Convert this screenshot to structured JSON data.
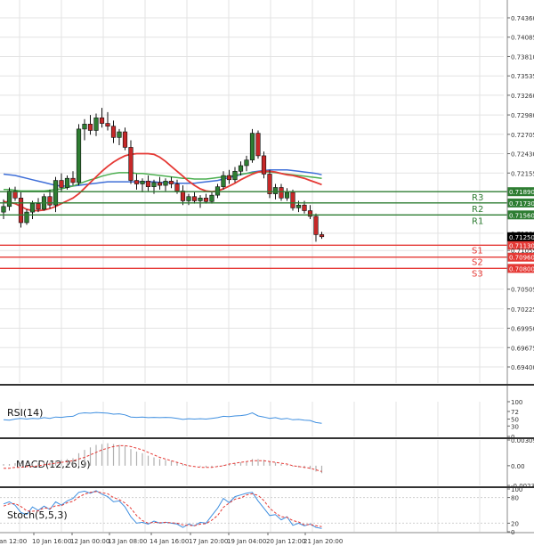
{
  "chart_data": [
    {
      "panel": "price",
      "type": "candlestick",
      "ylim": [
        0.694,
        0.7436
      ],
      "y_ticks": [
        "0.74360",
        "0.74085",
        "0.73810",
        "0.73535",
        "0.73260",
        "0.72980",
        "0.72705",
        "0.72430",
        "0.72155",
        "0.71890",
        "0.71730",
        "0.71560",
        "0.71300",
        "0.71250",
        "0.71130",
        "0.71055",
        "0.70960",
        "0.70800",
        "0.70505",
        "0.70225",
        "0.69950",
        "0.69675",
        "0.69400"
      ],
      "x_ticks": [
        "Jan 12:00",
        "10 Jan 16:00",
        "12 Jan 00:00",
        "13 Jan 08:00",
        "14 Jan 16:00",
        "17 Jan 20:00",
        "19 Jan 04:00",
        "20 Jan 12:00",
        "21 Jan 20:00"
      ],
      "candles": [
        {
          "o": 0.716,
          "h": 0.7178,
          "l": 0.715,
          "c": 0.7168
        },
        {
          "o": 0.7168,
          "h": 0.7195,
          "l": 0.7162,
          "c": 0.719
        },
        {
          "o": 0.719,
          "h": 0.7196,
          "l": 0.7176,
          "c": 0.718
        },
        {
          "o": 0.718,
          "h": 0.7188,
          "l": 0.7138,
          "c": 0.7145
        },
        {
          "o": 0.7145,
          "h": 0.7164,
          "l": 0.7142,
          "c": 0.716
        },
        {
          "o": 0.716,
          "h": 0.7176,
          "l": 0.715,
          "c": 0.7172
        },
        {
          "o": 0.7172,
          "h": 0.718,
          "l": 0.716,
          "c": 0.7164
        },
        {
          "o": 0.7164,
          "h": 0.7186,
          "l": 0.7162,
          "c": 0.7182
        },
        {
          "o": 0.7182,
          "h": 0.7192,
          "l": 0.7165,
          "c": 0.717
        },
        {
          "o": 0.717,
          "h": 0.721,
          "l": 0.716,
          "c": 0.7205
        },
        {
          "o": 0.7205,
          "h": 0.7215,
          "l": 0.7188,
          "c": 0.7195
        },
        {
          "o": 0.7195,
          "h": 0.7212,
          "l": 0.7192,
          "c": 0.7208
        },
        {
          "o": 0.7208,
          "h": 0.7218,
          "l": 0.7198,
          "c": 0.7202
        },
        {
          "o": 0.7202,
          "h": 0.7285,
          "l": 0.7198,
          "c": 0.7278
        },
        {
          "o": 0.7278,
          "h": 0.7292,
          "l": 0.7262,
          "c": 0.7285
        },
        {
          "o": 0.7285,
          "h": 0.7298,
          "l": 0.727,
          "c": 0.7276
        },
        {
          "o": 0.7276,
          "h": 0.73,
          "l": 0.7268,
          "c": 0.7294
        },
        {
          "o": 0.7294,
          "h": 0.7308,
          "l": 0.728,
          "c": 0.7286
        },
        {
          "o": 0.7286,
          "h": 0.7302,
          "l": 0.7276,
          "c": 0.7282
        },
        {
          "o": 0.7282,
          "h": 0.729,
          "l": 0.7258,
          "c": 0.7266
        },
        {
          "o": 0.7266,
          "h": 0.7278,
          "l": 0.7255,
          "c": 0.7274
        },
        {
          "o": 0.7274,
          "h": 0.728,
          "l": 0.7248,
          "c": 0.7252
        },
        {
          "o": 0.7252,
          "h": 0.7262,
          "l": 0.72,
          "c": 0.7205
        },
        {
          "o": 0.7205,
          "h": 0.7214,
          "l": 0.7192,
          "c": 0.72
        },
        {
          "o": 0.72,
          "h": 0.7208,
          "l": 0.7188,
          "c": 0.7204
        },
        {
          "o": 0.7204,
          "h": 0.7212,
          "l": 0.719,
          "c": 0.7196
        },
        {
          "o": 0.7196,
          "h": 0.7206,
          "l": 0.7186,
          "c": 0.7202
        },
        {
          "o": 0.7202,
          "h": 0.721,
          "l": 0.7192,
          "c": 0.7198
        },
        {
          "o": 0.7198,
          "h": 0.7208,
          "l": 0.719,
          "c": 0.7204
        },
        {
          "o": 0.7204,
          "h": 0.721,
          "l": 0.7194,
          "c": 0.72
        },
        {
          "o": 0.72,
          "h": 0.7206,
          "l": 0.7186,
          "c": 0.719
        },
        {
          "o": 0.719,
          "h": 0.7198,
          "l": 0.717,
          "c": 0.7176
        },
        {
          "o": 0.7176,
          "h": 0.7186,
          "l": 0.717,
          "c": 0.7182
        },
        {
          "o": 0.7182,
          "h": 0.7188,
          "l": 0.7172,
          "c": 0.7176
        },
        {
          "o": 0.7176,
          "h": 0.7184,
          "l": 0.7166,
          "c": 0.718
        },
        {
          "o": 0.718,
          "h": 0.7186,
          "l": 0.7172,
          "c": 0.7175
        },
        {
          "o": 0.7175,
          "h": 0.7188,
          "l": 0.7172,
          "c": 0.7184
        },
        {
          "o": 0.7184,
          "h": 0.72,
          "l": 0.718,
          "c": 0.7196
        },
        {
          "o": 0.7196,
          "h": 0.7218,
          "l": 0.7192,
          "c": 0.7212
        },
        {
          "o": 0.7212,
          "h": 0.722,
          "l": 0.72,
          "c": 0.7206
        },
        {
          "o": 0.7206,
          "h": 0.7224,
          "l": 0.7202,
          "c": 0.7218
        },
        {
          "o": 0.7218,
          "h": 0.7232,
          "l": 0.7212,
          "c": 0.7226
        },
        {
          "o": 0.7226,
          "h": 0.724,
          "l": 0.7218,
          "c": 0.7234
        },
        {
          "o": 0.7234,
          "h": 0.7278,
          "l": 0.723,
          "c": 0.7272
        },
        {
          "o": 0.7272,
          "h": 0.7276,
          "l": 0.7236,
          "c": 0.724
        },
        {
          "o": 0.724,
          "h": 0.7246,
          "l": 0.7208,
          "c": 0.7214
        },
        {
          "o": 0.7214,
          "h": 0.722,
          "l": 0.718,
          "c": 0.7186
        },
        {
          "o": 0.7186,
          "h": 0.72,
          "l": 0.7178,
          "c": 0.7195
        },
        {
          "o": 0.7195,
          "h": 0.72,
          "l": 0.7176,
          "c": 0.718
        },
        {
          "o": 0.718,
          "h": 0.7194,
          "l": 0.7176,
          "c": 0.7188
        },
        {
          "o": 0.7188,
          "h": 0.7192,
          "l": 0.7162,
          "c": 0.7166
        },
        {
          "o": 0.7166,
          "h": 0.7176,
          "l": 0.716,
          "c": 0.717
        },
        {
          "o": 0.717,
          "h": 0.7176,
          "l": 0.7158,
          "c": 0.7162
        },
        {
          "o": 0.7162,
          "h": 0.717,
          "l": 0.715,
          "c": 0.7154
        },
        {
          "o": 0.7154,
          "h": 0.7158,
          "l": 0.7118,
          "c": 0.7128
        },
        {
          "o": 0.7128,
          "h": 0.7132,
          "l": 0.7122,
          "c": 0.7125
        }
      ],
      "ma_red": [
        0.7175,
        0.7174,
        0.7172,
        0.7168,
        0.7164,
        0.7162,
        0.7162,
        0.7163,
        0.7165,
        0.7168,
        0.7172,
        0.7176,
        0.718,
        0.7186,
        0.7194,
        0.7202,
        0.721,
        0.7218,
        0.7225,
        0.7231,
        0.7236,
        0.724,
        0.7242,
        0.7243,
        0.7243,
        0.7243,
        0.7242,
        0.7238,
        0.7232,
        0.7225,
        0.7218,
        0.7211,
        0.7204,
        0.7198,
        0.7193,
        0.719,
        0.7189,
        0.719,
        0.7193,
        0.7197,
        0.7201,
        0.7206,
        0.721,
        0.7214,
        0.7217,
        0.7218,
        0.7218,
        0.7217,
        0.7215,
        0.7213,
        0.7212,
        0.721,
        0.7208,
        0.7205,
        0.7202,
        0.7199
      ],
      "ma_green": [
        0.7192,
        0.7192,
        0.7191,
        0.719,
        0.719,
        0.719,
        0.719,
        0.719,
        0.7191,
        0.7192,
        0.7193,
        0.7195,
        0.7197,
        0.72,
        0.7203,
        0.7206,
        0.7208,
        0.7211,
        0.7213,
        0.7215,
        0.7216,
        0.7216,
        0.7216,
        0.7215,
        0.7215,
        0.7214,
        0.7213,
        0.7212,
        0.7211,
        0.721,
        0.7209,
        0.7208,
        0.7208,
        0.7207,
        0.7207,
        0.7207,
        0.7208,
        0.7209,
        0.721,
        0.7211,
        0.7212,
        0.7214,
        0.7215,
        0.7216,
        0.7217,
        0.7217,
        0.7217,
        0.7216,
        0.7215,
        0.7214,
        0.7213,
        0.7212,
        0.7211,
        0.721,
        0.7209,
        0.7208
      ],
      "ma_blue": [
        0.7214,
        0.7213,
        0.7212,
        0.721,
        0.7208,
        0.7206,
        0.7204,
        0.7202,
        0.72,
        0.7198,
        0.7197,
        0.7197,
        0.7197,
        0.7198,
        0.7199,
        0.72,
        0.7201,
        0.7202,
        0.7203,
        0.7203,
        0.7203,
        0.7203,
        0.7203,
        0.7203,
        0.7203,
        0.7203,
        0.7203,
        0.7202,
        0.7202,
        0.7202,
        0.7201,
        0.7201,
        0.7201,
        0.7201,
        0.7202,
        0.7203,
        0.7204,
        0.7205,
        0.7207,
        0.7209,
        0.7211,
        0.7213,
        0.7215,
        0.7217,
        0.7218,
        0.7219,
        0.722,
        0.722,
        0.722,
        0.722,
        0.7219,
        0.7218,
        0.7217,
        0.7216,
        0.7215,
        0.7213
      ],
      "levels": [
        {
          "name": "R3",
          "value": 0.7189,
          "label": "0.71890",
          "color": "#2e7d32"
        },
        {
          "name": "R2",
          "value": 0.7173,
          "label": "0.71730",
          "color": "#2e7d32"
        },
        {
          "name": "R1",
          "value": 0.7156,
          "label": "0.71560",
          "color": "#2e7d32"
        },
        {
          "name": "S1",
          "value": 0.7113,
          "label": "0.71130",
          "color": "#e53935"
        },
        {
          "name": "S2",
          "value": 0.7096,
          "label": "0.70960",
          "color": "#e53935"
        },
        {
          "name": "S3",
          "value": 0.708,
          "label": "0.70800",
          "color": "#e53935"
        }
      ],
      "current_price_label": "0.71250",
      "colors": {
        "ma_red": "#e53935",
        "ma_green": "#4caf50",
        "ma_blue": "#3f6fd8",
        "bull": "#2e7d32",
        "bear": "#c62828"
      }
    },
    {
      "panel": "rsi",
      "type": "line",
      "label": "RSI(14)",
      "ylim": [
        0,
        100
      ],
      "y_ticks": [
        "100",
        "72",
        "50",
        "30",
        "0"
      ],
      "values": [
        48,
        47,
        50,
        52,
        50,
        52,
        51,
        54,
        52,
        56,
        55,
        57,
        58,
        66,
        68,
        67,
        69,
        68,
        67,
        64,
        65,
        62,
        56,
        55,
        56,
        54,
        55,
        54,
        55,
        54,
        52,
        49,
        51,
        50,
        51,
        50,
        52,
        54,
        58,
        57,
        59,
        60,
        62,
        68,
        59,
        56,
        52,
        54,
        50,
        52,
        48,
        49,
        47,
        46,
        40,
        38
      ],
      "color": "#3f8fe0"
    },
    {
      "panel": "macd",
      "type": "histogram+line",
      "label": "MACD(12,26,9)",
      "ylim": [
        -0.00237,
        0.00309
      ],
      "y_ticks": [
        "0.00309",
        "0.00",
        "-0.002372"
      ],
      "histogram": [
        0.0002,
        0.0002,
        0.0003,
        0.0002,
        0.0002,
        0.0003,
        0.0003,
        0.0004,
        0.0004,
        0.0006,
        0.0007,
        0.0008,
        0.0009,
        0.0015,
        0.0019,
        0.0022,
        0.0025,
        0.0026,
        0.0027,
        0.0026,
        0.0025,
        0.0024,
        0.002,
        0.0017,
        0.0015,
        0.0012,
        0.001,
        0.0008,
        0.0007,
        0.0006,
        0.0004,
        0.0002,
        0.0001,
        0.0,
        -0.0001,
        -0.0002,
        -0.0002,
        -0.0001,
        0.0001,
        0.0002,
        0.0003,
        0.0004,
        0.0005,
        0.0008,
        0.0008,
        0.0007,
        0.0005,
        0.0004,
        0.0002,
        0.0001,
        -0.0001,
        -0.0002,
        -0.0003,
        -0.0004,
        -0.0007,
        -0.0009
      ],
      "signal": [
        -0.0003,
        -0.0003,
        -0.0002,
        -0.0002,
        -0.0001,
        -0.0001,
        0.0,
        0.0001,
        0.0002,
        0.0003,
        0.0004,
        0.0005,
        0.0006,
        0.0008,
        0.001,
        0.0013,
        0.0016,
        0.0019,
        0.0021,
        0.0023,
        0.0024,
        0.0024,
        0.0023,
        0.0021,
        0.0019,
        0.0016,
        0.0013,
        0.001,
        0.0008,
        0.0006,
        0.0004,
        0.0002,
        0.0,
        -0.0001,
        -0.0002,
        -0.0002,
        -0.0002,
        -0.0001,
        0.0,
        0.0002,
        0.0003,
        0.0004,
        0.0005,
        0.0006,
        0.0006,
        0.0006,
        0.0005,
        0.0004,
        0.0003,
        0.0002,
        0.0,
        -0.0001,
        -0.0002,
        -0.0003,
        -0.0005,
        -0.0007
      ],
      "colors": {
        "histogram": "#b0b0b0",
        "signal": "#e53935"
      }
    },
    {
      "panel": "stoch",
      "type": "line",
      "label": "Stoch(5,5,3)",
      "ylim": [
        0,
        100
      ],
      "y_ticks": [
        "100",
        "80",
        "20",
        "0"
      ],
      "k": [
        65,
        70,
        62,
        45,
        40,
        58,
        50,
        60,
        52,
        70,
        62,
        72,
        78,
        92,
        95,
        90,
        96,
        88,
        82,
        70,
        72,
        58,
        35,
        20,
        22,
        18,
        25,
        20,
        22,
        20,
        18,
        10,
        18,
        14,
        22,
        20,
        38,
        55,
        78,
        68,
        82,
        86,
        90,
        92,
        72,
        55,
        38,
        40,
        28,
        35,
        15,
        20,
        14,
        18,
        10,
        8
      ],
      "d": [
        60,
        65,
        66,
        59,
        49,
        48,
        49,
        56,
        54,
        61,
        61,
        68,
        71,
        81,
        88,
        92,
        94,
        91,
        89,
        80,
        75,
        67,
        55,
        38,
        26,
        20,
        22,
        21,
        22,
        21,
        20,
        16,
        15,
        14,
        18,
        19,
        27,
        38,
        57,
        67,
        76,
        79,
        86,
        89,
        85,
        73,
        55,
        44,
        35,
        34,
        26,
        23,
        16,
        17,
        14,
        12
      ],
      "colors": {
        "k": "#3f8fe0",
        "d": "#e53935"
      }
    }
  ]
}
